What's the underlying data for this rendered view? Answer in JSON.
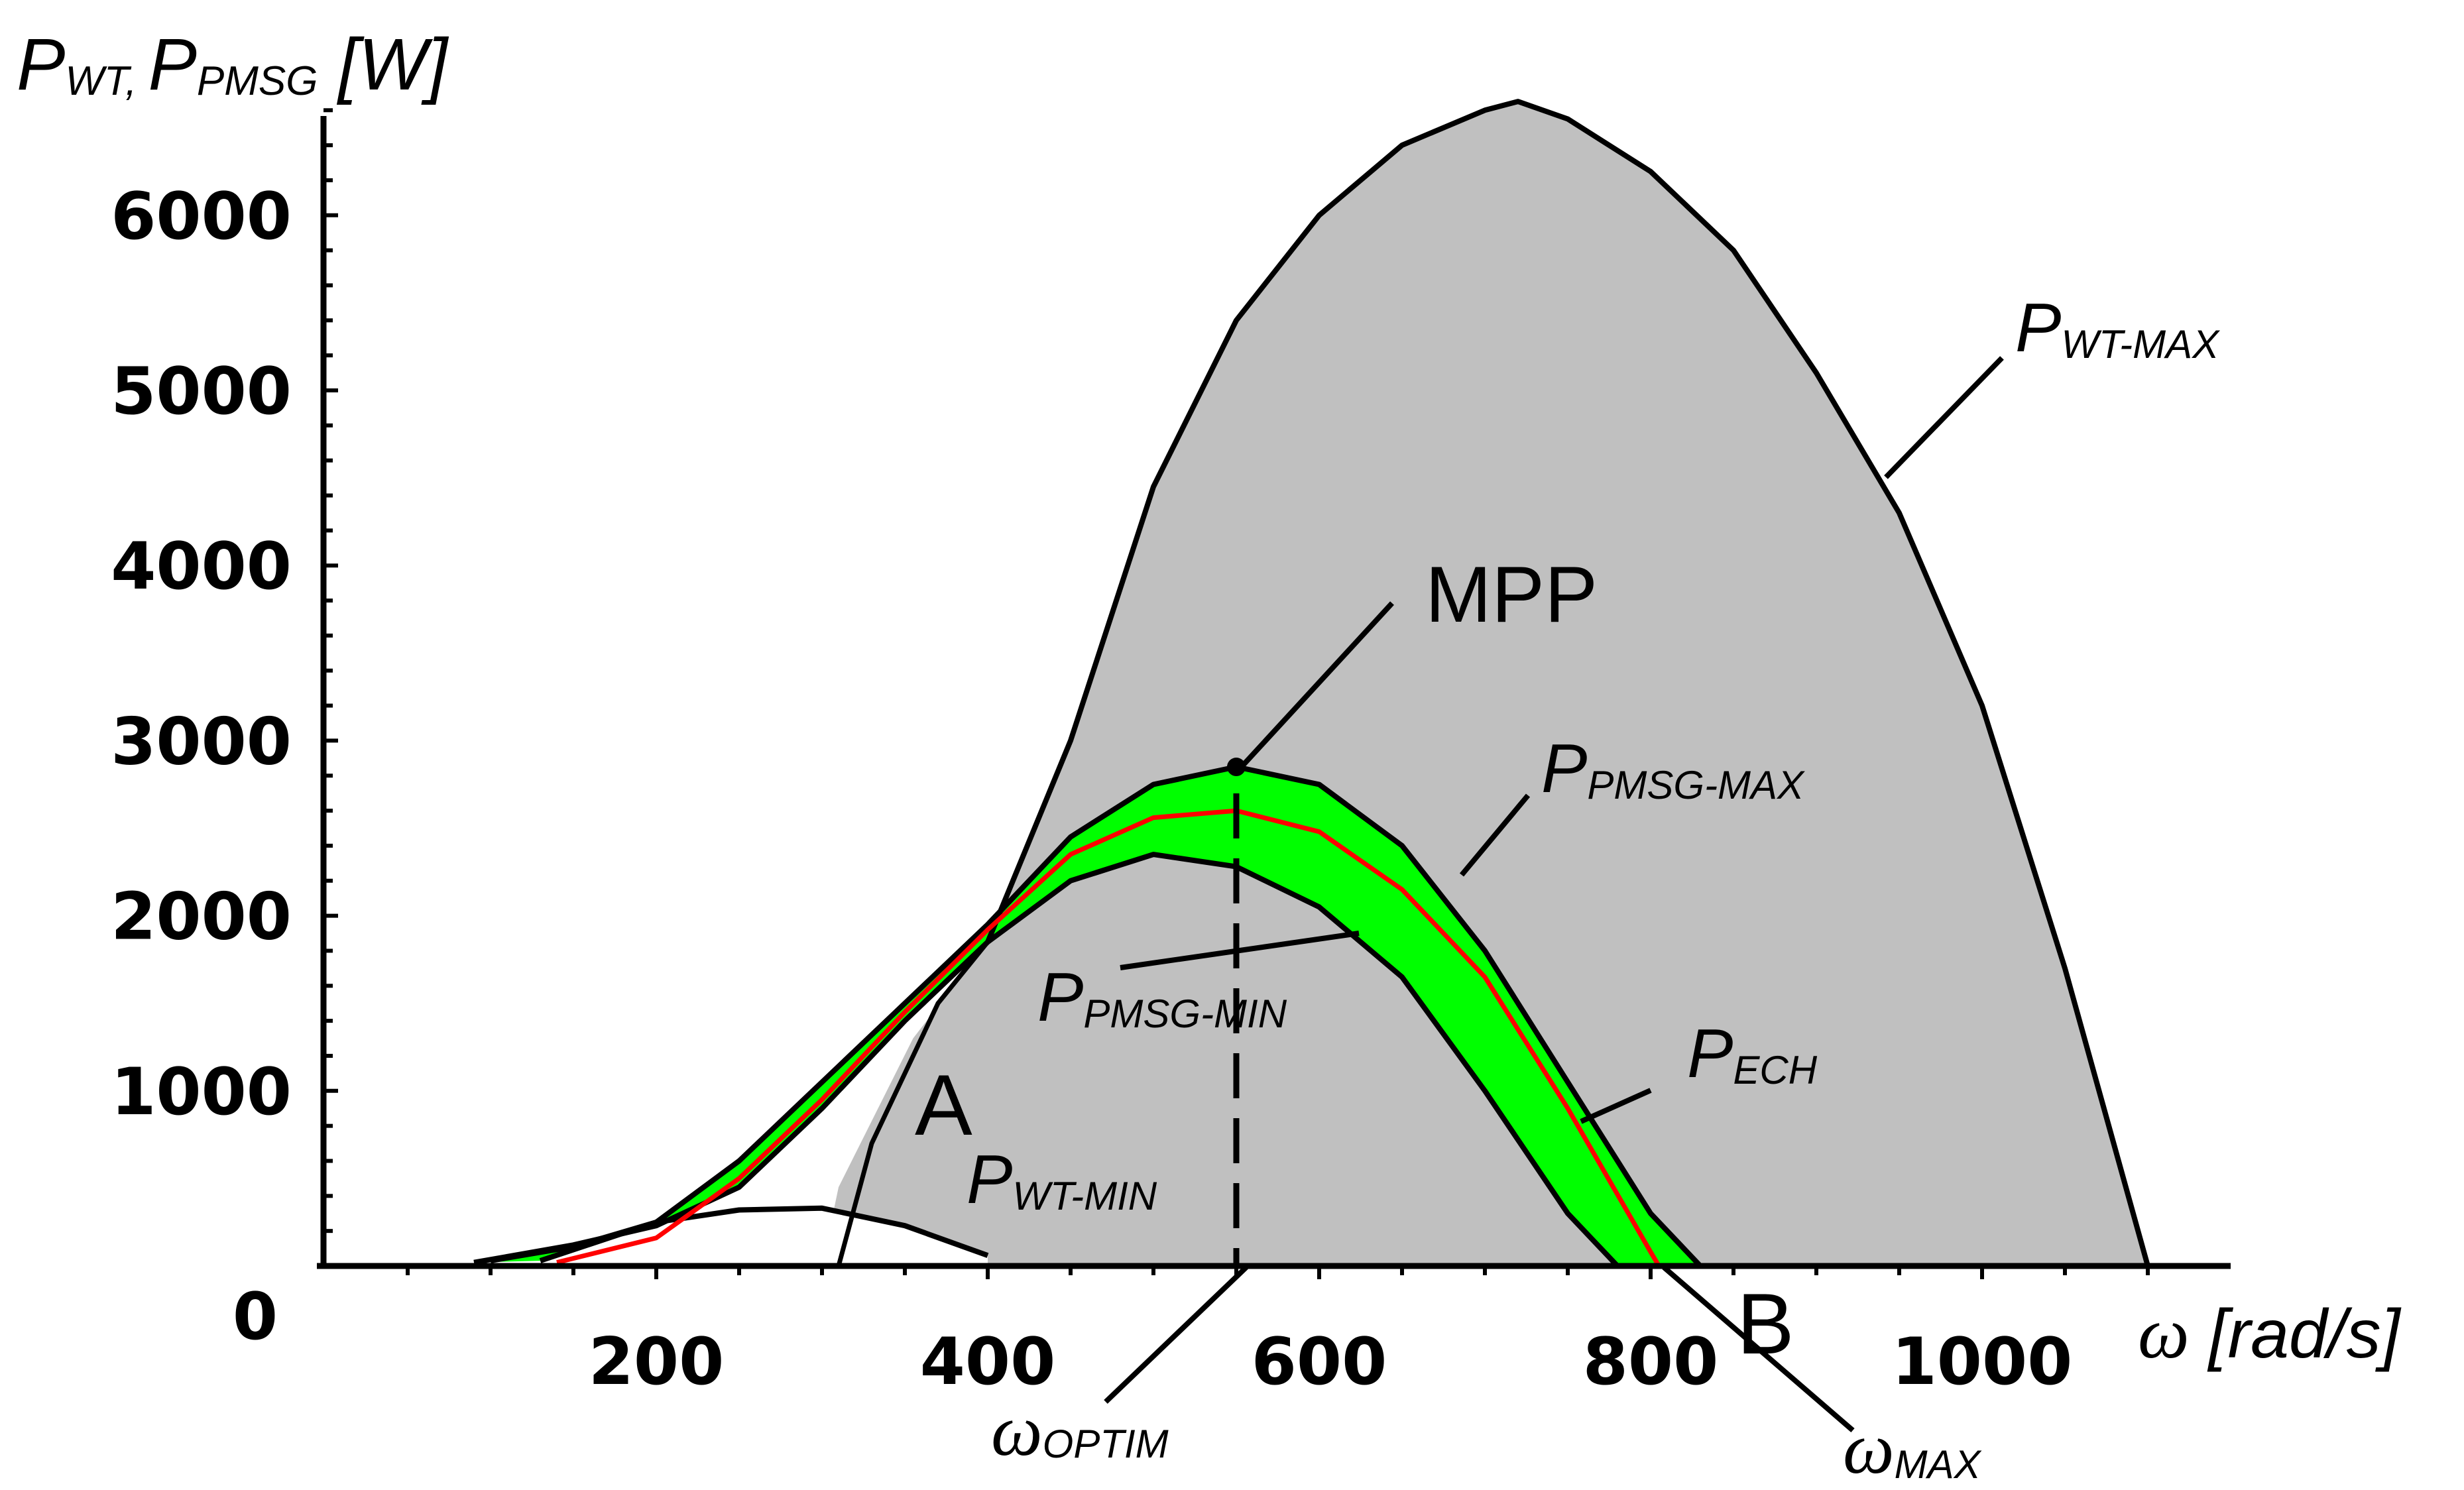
{
  "chart_data": {
    "type": "area",
    "title": "",
    "xlabel": "ω [rad/s]",
    "ylabel": "PWT, PPMSG [W]",
    "xlim": [
      0,
      1150
    ],
    "ylim": [
      0,
      6650
    ],
    "x_ticks": [
      200,
      400,
      600,
      800,
      1000
    ],
    "y_ticks": [
      1000,
      2000,
      3000,
      4000,
      5000,
      6000
    ],
    "origin_label": "0",
    "y_axis_title": {
      "main1": "P",
      "sub1": "WT, ",
      "main2": "P",
      "sub2": "PMSG",
      "unit": " [W]"
    },
    "x_axis_title": {
      "symbol": "ω",
      "unit": " [rad/s]"
    },
    "colors": {
      "wt_region": "#c0c0c0",
      "pmsg_band": "#00ff00",
      "ech_curve": "#ff0000",
      "lines": "#000000"
    },
    "series": [
      {
        "name": "PWT-MAX",
        "x": [
          400,
          450,
          500,
          550,
          600,
          650,
          700,
          720,
          750,
          800,
          850,
          900,
          950,
          1000,
          1050,
          1100
        ],
        "y": [
          1850,
          3000,
          4450,
          5400,
          6000,
          6400,
          6600,
          6650,
          6550,
          6250,
          5800,
          5100,
          4300,
          3200,
          1700,
          0
        ]
      },
      {
        "name": "PWT-MIN",
        "x": [
          100,
          150,
          200,
          250,
          300,
          350,
          400
        ],
        "y": [
          30,
          110,
          250,
          320,
          330,
          230,
          60
        ]
      },
      {
        "name": "PPMSG-MAX",
        "x": [
          130,
          200,
          250,
          300,
          350,
          400,
          450,
          500,
          550,
          600,
          650,
          700,
          750,
          800,
          830
        ],
        "y": [
          30,
          250,
          600,
          1050,
          1500,
          1950,
          2450,
          2750,
          2850,
          2750,
          2400,
          1800,
          1050,
          300,
          0
        ]
      },
      {
        "name": "PPMSG-MIN",
        "x": [
          90,
          150,
          200,
          250,
          300,
          350,
          400,
          450,
          500,
          550,
          600,
          650,
          700,
          750,
          780
        ],
        "y": [
          20,
          120,
          230,
          450,
          900,
          1400,
          1850,
          2200,
          2350,
          2280,
          2050,
          1650,
          1000,
          300,
          0
        ]
      },
      {
        "name": "PECH",
        "x": [
          140,
          200,
          250,
          300,
          350,
          400,
          450,
          500,
          550,
          600,
          650,
          700,
          750,
          800,
          805
        ],
        "y": [
          20,
          160,
          500,
          950,
          1450,
          1920,
          2350,
          2560,
          2600,
          2480,
          2150,
          1650,
          900,
          80,
          0
        ]
      }
    ],
    "annotations": {
      "pwt_max": {
        "main": "P",
        "sub": "WT-MAX"
      },
      "mpp": "MPP",
      "ppmsg_max": {
        "main": "P",
        "sub": "PMSG-MAX"
      },
      "ppmsg_min": {
        "main": "P",
        "sub": "PMSG-MIN"
      },
      "pech": {
        "main": "P",
        "sub": "ECH"
      },
      "pwt_min": {
        "main": "P",
        "sub": "WT-MIN"
      },
      "point_a": "A",
      "point_b": "B",
      "omega_optim": {
        "symbol": "ω",
        "sub": "OPTIM"
      },
      "omega_max": {
        "symbol": "ω",
        "sub": "MAX"
      }
    },
    "markers": {
      "mpp_point": {
        "x": 550,
        "y": 2850
      },
      "omega_optim_x": 550,
      "omega_max_x": 805
    }
  }
}
